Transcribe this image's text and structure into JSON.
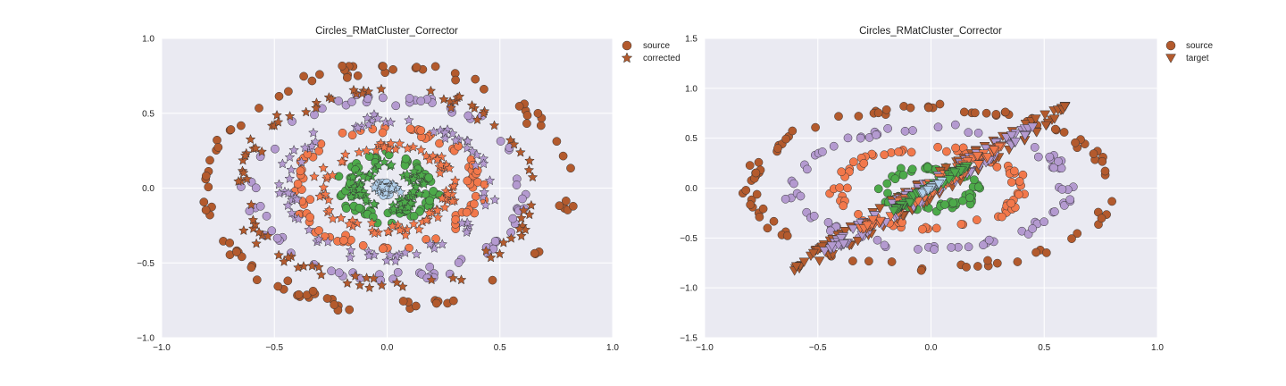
{
  "colors": {
    "background": "#eaeaf2",
    "grid": "#ffffff",
    "outer_ring": "#b35a2d",
    "ring3_purple": "#b49ad0",
    "ring2_orange": "#f2784b",
    "ring1_green": "#4daa4a",
    "center_lightblue": "#b3d1ec",
    "edge": "#333333"
  },
  "chart_data": [
    {
      "type": "scatter",
      "title": "Circles_RMatCluster_Corrector",
      "xlim": [
        -1.0,
        1.0
      ],
      "ylim": [
        -1.0,
        1.0
      ],
      "xticks": [
        "−1.0",
        "−0.5",
        "0.0",
        "0.5",
        "1.0"
      ],
      "xtick_values": [
        -1.0,
        -0.5,
        0.0,
        0.5,
        1.0
      ],
      "yticks": [
        "−1.0",
        "−0.5",
        "0.0",
        "0.5",
        "1.0"
      ],
      "ytick_values": [
        -1.0,
        -0.5,
        0.0,
        0.5,
        1.0
      ],
      "grid": true,
      "legend_position": "outside-right-top",
      "legend": [
        {
          "label": "source",
          "marker": "circle"
        },
        {
          "label": "corrected",
          "marker": "star"
        }
      ],
      "series": [
        {
          "marker": "circle",
          "cluster": "outer_ring",
          "radius": 0.8,
          "count": 95
        },
        {
          "marker": "circle",
          "cluster": "ring3_purple",
          "radius": 0.6,
          "count": 80
        },
        {
          "marker": "circle",
          "cluster": "ring2_orange",
          "radius": 0.4,
          "count": 85
        },
        {
          "marker": "circle",
          "cluster": "ring1_green",
          "radius": 0.2,
          "count": 70
        },
        {
          "marker": "circle",
          "cluster": "center_lightblue",
          "radius": 0.0,
          "count": 35
        },
        {
          "marker": "star",
          "cluster": "outer_ring",
          "radius": 0.65,
          "count": 90
        },
        {
          "marker": "star",
          "cluster": "ring3_purple",
          "radius": 0.45,
          "count": 80
        },
        {
          "marker": "star",
          "cluster": "ring2_orange",
          "radius": 0.28,
          "count": 85
        },
        {
          "marker": "star",
          "cluster": "ring1_green",
          "radius": 0.13,
          "count": 70
        },
        {
          "marker": "star",
          "cluster": "center_lightblue",
          "radius": 0.0,
          "count": 35
        }
      ]
    },
    {
      "type": "scatter",
      "title": "Circles_RMatCluster_Corrector",
      "xlim": [
        -1.0,
        1.0
      ],
      "ylim": [
        -1.5,
        1.5
      ],
      "xticks": [
        "−1.0",
        "−0.5",
        "0.0",
        "0.5",
        "1.0"
      ],
      "xtick_values": [
        -1.0,
        -0.5,
        0.0,
        0.5,
        1.0
      ],
      "yticks": [
        "−1.5",
        "−1.0",
        "−0.5",
        "0.0",
        "0.5",
        "1.0",
        "1.5"
      ],
      "ytick_values": [
        -1.5,
        -1.0,
        -0.5,
        0.0,
        0.5,
        1.0,
        1.5
      ],
      "grid": true,
      "legend_position": "outside-right-top",
      "legend": [
        {
          "label": "source",
          "marker": "circle"
        },
        {
          "label": "target",
          "marker": "triangle-down"
        }
      ],
      "series": [
        {
          "marker": "circle",
          "cluster": "outer_ring",
          "radius": 0.8,
          "count": 95
        },
        {
          "marker": "circle",
          "cluster": "ring3_purple",
          "radius": 0.6,
          "count": 80
        },
        {
          "marker": "circle",
          "cluster": "ring2_orange",
          "radius": 0.4,
          "count": 85
        },
        {
          "marker": "circle",
          "cluster": "ring1_green",
          "radius": 0.2,
          "count": 70
        },
        {
          "marker": "circle",
          "cluster": "center_lightblue",
          "radius": 0.0,
          "count": 35
        },
        {
          "marker": "triangle-down",
          "cluster": "outer_ring",
          "radius": 0.8,
          "count": 90,
          "transform": "sheared-diagonal"
        },
        {
          "marker": "triangle-down",
          "cluster": "ring3_purple",
          "radius": 0.6,
          "count": 80,
          "transform": "sheared-diagonal"
        },
        {
          "marker": "triangle-down",
          "cluster": "ring2_orange",
          "radius": 0.4,
          "count": 85,
          "transform": "sheared-diagonal"
        },
        {
          "marker": "triangle-down",
          "cluster": "ring1_green",
          "radius": 0.2,
          "count": 70,
          "transform": "sheared-diagonal"
        },
        {
          "marker": "triangle-down",
          "cluster": "center_lightblue",
          "radius": 0.0,
          "count": 35,
          "transform": "sheared-diagonal"
        }
      ]
    }
  ]
}
